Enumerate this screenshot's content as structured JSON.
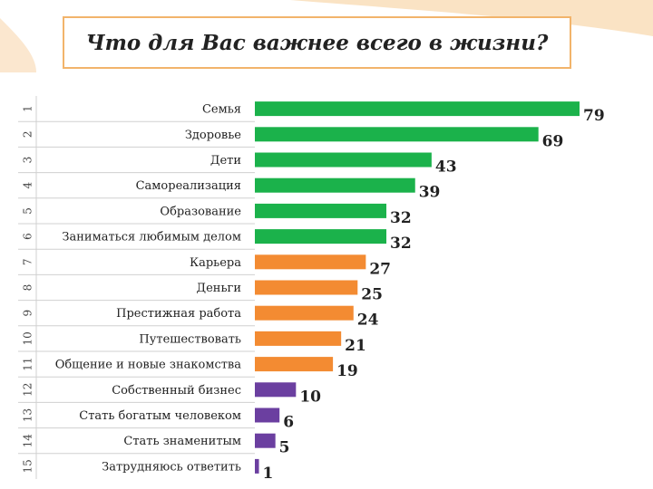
{
  "chart_data": {
    "type": "bar",
    "orientation": "horizontal",
    "title": "Что для Вас важнее всего в жизни?",
    "row_numbers": [
      "1",
      "2",
      "3",
      "4",
      "5",
      "6",
      "7",
      "8",
      "9",
      "10",
      "11",
      "12",
      "13",
      "14",
      "15"
    ],
    "categories": [
      "Семья",
      "Здоровье",
      "Дети",
      "Самореализация",
      "Образование",
      "Заниматься любимым делом",
      "Карьера",
      "Деньги",
      "Престижная работа",
      "Путешествовать",
      "Общение и новые знакомства",
      "Собственный бизнес",
      "Стать богатым человеком",
      "Стать знаменитым",
      "Затрудняюсь ответить"
    ],
    "values": [
      79,
      69,
      43,
      39,
      32,
      32,
      27,
      25,
      24,
      21,
      19,
      10,
      6,
      5,
      1
    ],
    "value_labels": [
      "79",
      "69",
      "43",
      "39",
      "32",
      "32",
      "27",
      "25",
      "24",
      "21",
      "19",
      "10",
      "6",
      "5",
      "1"
    ],
    "bar_colors": [
      "#1bb24b",
      "#1bb24b",
      "#1bb24b",
      "#1bb24b",
      "#1bb24b",
      "#1bb24b",
      "#f38b32",
      "#f38b32",
      "#f38b32",
      "#f38b32",
      "#f38b32",
      "#6b3fa0",
      "#6b3fa0",
      "#6b3fa0",
      "#6b3fa0"
    ],
    "xlim": [
      0,
      79
    ],
    "grid": false,
    "legend": "none"
  },
  "colors": {
    "title_border": "#f2b46b",
    "grid_lines": "#d0d0d0",
    "corner_accent": "#f7cfa0"
  }
}
